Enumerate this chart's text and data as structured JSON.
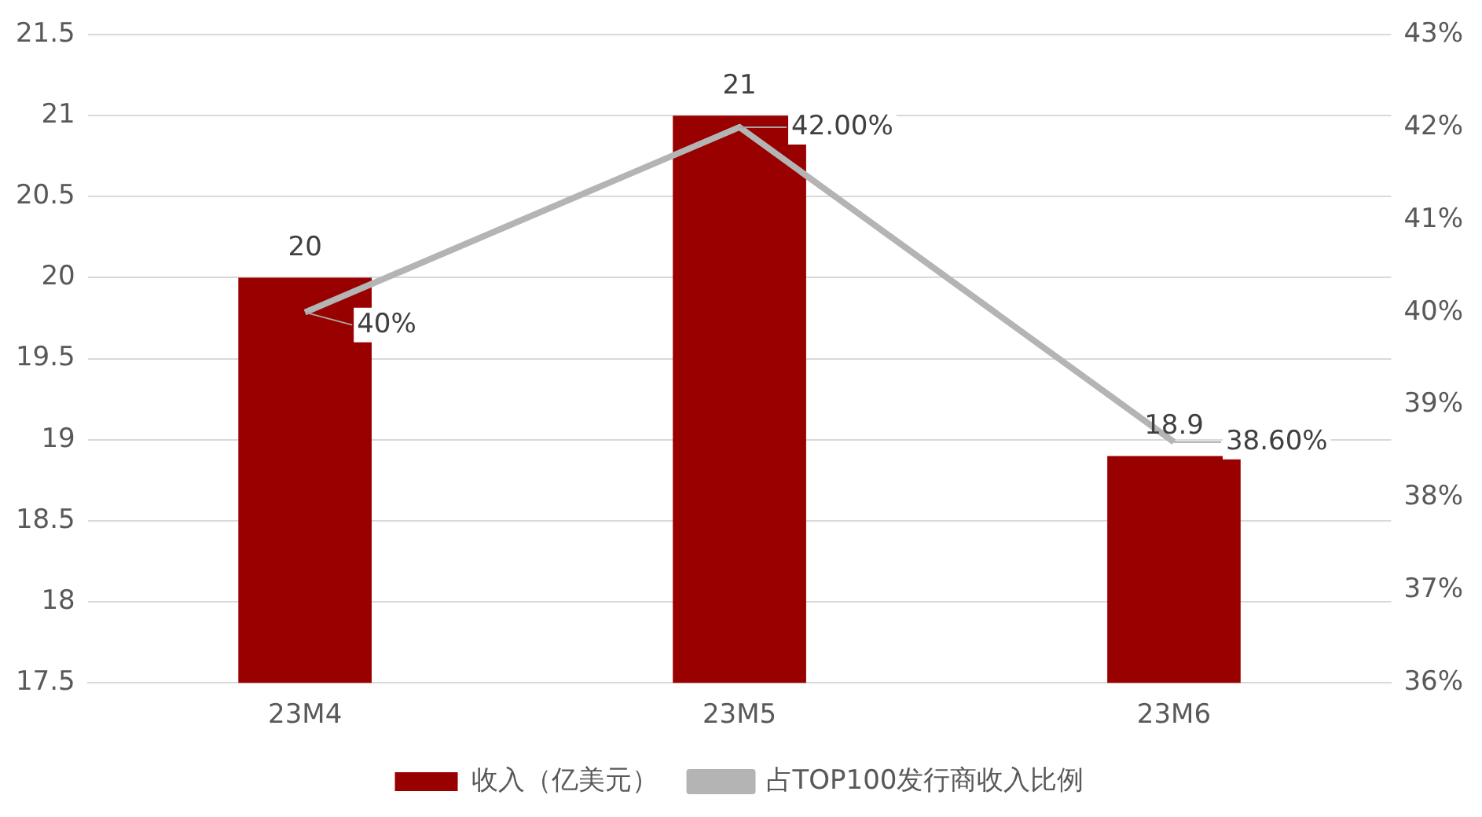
{
  "chart_data": {
    "type": "bar",
    "categories": [
      "23M4",
      "23M5",
      "23M6"
    ],
    "series": [
      {
        "name": "收入（亿美元）",
        "color": "#990000",
        "values": [
          20,
          21,
          18.9
        ],
        "value_labels": [
          "20",
          "21",
          "18.9"
        ]
      },
      {
        "name": "占TOP100发行商收入比例",
        "type": "line",
        "axis": "y2",
        "color": "#b4b4b4",
        "values": [
          40,
          42,
          38.6
        ],
        "value_labels": [
          "40%",
          "42.00%",
          "38.60%"
        ],
        "marker": "none"
      }
    ],
    "ylim": [
      17.5,
      21.5
    ],
    "yticks": [
      17.5,
      18,
      18.5,
      19,
      19.5,
      20,
      20.5,
      21,
      21.5
    ],
    "y2lim": [
      36,
      43
    ],
    "y2ticks": [
      {
        "value": 36,
        "label": "36%"
      },
      {
        "value": 37,
        "label": "37%"
      },
      {
        "value": 38,
        "label": "38%"
      },
      {
        "value": 39,
        "label": "39%"
      },
      {
        "value": 40,
        "label": "40%"
      },
      {
        "value": 41,
        "label": "41%"
      },
      {
        "value": 42,
        "label": "42%"
      },
      {
        "value": 43,
        "label": "43%"
      }
    ],
    "grid": "y",
    "legend": "bottom"
  }
}
